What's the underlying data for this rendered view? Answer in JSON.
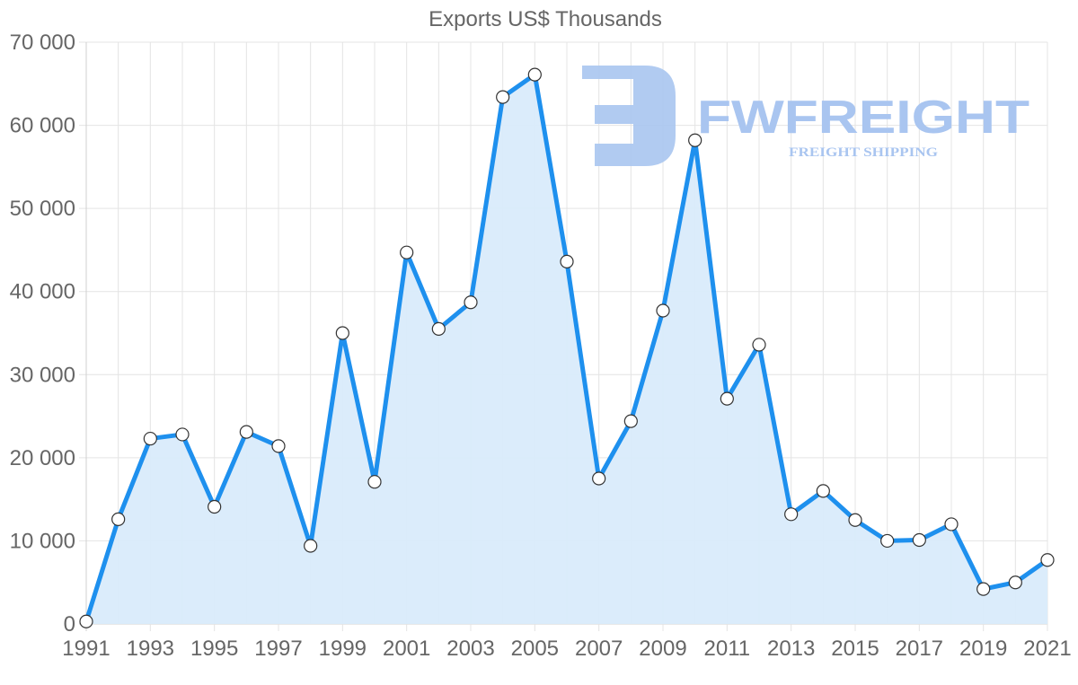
{
  "chart_data": {
    "type": "line",
    "title": "Exports US$ Thousands",
    "xlabel": "",
    "ylabel": "",
    "x": [
      1991,
      1992,
      1993,
      1994,
      1995,
      1996,
      1997,
      1998,
      1999,
      2000,
      2001,
      2002,
      2003,
      2004,
      2005,
      2006,
      2007,
      2008,
      2009,
      2010,
      2011,
      2012,
      2013,
      2014,
      2015,
      2016,
      2017,
      2018,
      2019,
      2020,
      2021
    ],
    "series": [
      {
        "name": "Exports US$ Thousands",
        "values": [
          300,
          12600,
          22300,
          22800,
          14100,
          23100,
          21400,
          9400,
          35000,
          17100,
          44700,
          35500,
          38700,
          63400,
          66100,
          43600,
          17500,
          24400,
          37700,
          58200,
          27100,
          33600,
          13200,
          16000,
          12500,
          10000,
          10100,
          12000,
          4200,
          5000,
          7700
        ],
        "color": "#1e90ee",
        "fill": "#d9ebfb"
      }
    ],
    "ylim": [
      0,
      70000
    ],
    "yticks": [
      0,
      10000,
      20000,
      30000,
      40000,
      50000,
      60000,
      70000
    ],
    "ytick_labels": [
      "0",
      "10 000",
      "20 000",
      "30 000",
      "40 000",
      "50 000",
      "60 000",
      "70 000"
    ],
    "xtick_labels": [
      "1991",
      "1993",
      "1995",
      "1997",
      "1999",
      "2001",
      "2003",
      "2005",
      "2007",
      "2009",
      "2011",
      "2013",
      "2015",
      "2017",
      "2019",
      "2021"
    ],
    "grid": true,
    "legend": "none"
  },
  "watermark": {
    "brand": "FWFREIGHT",
    "tagline": "FREIGHT SHIPPING",
    "color": "#a9c5f0"
  }
}
